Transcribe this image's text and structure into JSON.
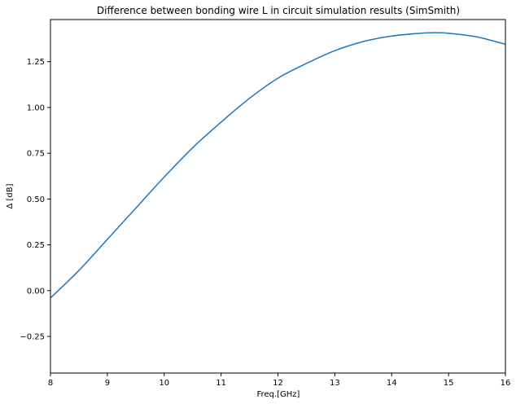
{
  "chart_data": {
    "type": "line",
    "title": "Difference between bonding wire L in circuit simulation results (SimSmith)",
    "xlabel": "Freq.[GHz]",
    "ylabel": "Δ [dB]",
    "xlim": [
      8,
      16
    ],
    "ylim": [
      -0.45,
      1.48
    ],
    "xticks": [
      8,
      9,
      10,
      11,
      12,
      13,
      14,
      15,
      16
    ],
    "yticks": [
      -0.25,
      0.0,
      0.25,
      0.5,
      0.75,
      1.0,
      1.25
    ],
    "xtick_labels": [
      "8",
      "9",
      "10",
      "11",
      "12",
      "13",
      "14",
      "15",
      "16"
    ],
    "ytick_labels": [
      "−0.25",
      "0.00",
      "0.25",
      "0.50",
      "0.75",
      "1.00",
      "1.25"
    ],
    "grid": false,
    "series": [
      {
        "color": "#1f77b4",
        "x": [
          8.0,
          8.5,
          9.0,
          9.5,
          10.0,
          10.5,
          11.0,
          11.5,
          12.0,
          12.5,
          13.0,
          13.5,
          14.0,
          14.5,
          14.7,
          15.0,
          15.5,
          16.0
        ],
        "y": [
          -0.04,
          0.11,
          0.28,
          0.45,
          0.62,
          0.78,
          0.92,
          1.05,
          1.16,
          1.24,
          1.31,
          1.36,
          1.39,
          1.405,
          1.408,
          1.405,
          1.385,
          1.345
        ]
      }
    ]
  }
}
